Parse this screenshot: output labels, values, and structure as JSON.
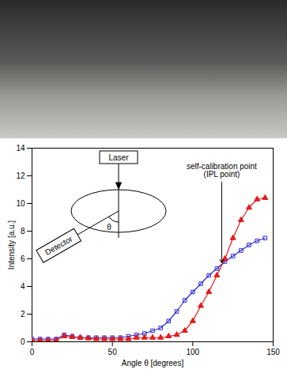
{
  "chart_data": {
    "type": "line",
    "xlabel": "Angle θ [degrees]",
    "ylabel": "Intensity [a.u.]",
    "x": [
      0,
      5,
      10,
      15,
      20,
      25,
      30,
      35,
      40,
      45,
      50,
      55,
      60,
      65,
      70,
      75,
      80,
      85,
      90,
      95,
      100,
      105,
      110,
      115,
      120,
      125,
      130,
      135,
      140,
      145
    ],
    "xlim": [
      0,
      150
    ],
    "xticks": [
      0,
      50,
      100,
      150
    ],
    "ylim": [
      0,
      14
    ],
    "yticks": [
      0,
      2,
      4,
      6,
      8,
      10,
      12,
      14
    ],
    "grid": false,
    "series": [
      {
        "color": "#2b2bd9",
        "marker": "square_open",
        "values": [
          0.2,
          0.2,
          0.2,
          0.2,
          0.5,
          0.4,
          0.3,
          0.3,
          0.3,
          0.3,
          0.3,
          0.3,
          0.4,
          0.5,
          0.6,
          0.8,
          1.0,
          1.5,
          2.2,
          3.0,
          3.6,
          4.2,
          4.8,
          5.3,
          5.8,
          6.2,
          6.6,
          7.0,
          7.3,
          7.5
        ]
      },
      {
        "color": "#e41a1c",
        "marker": "triangle",
        "values": [
          0.1,
          0.1,
          0.1,
          0.1,
          0.4,
          0.35,
          0.3,
          0.25,
          0.2,
          0.2,
          0.2,
          0.2,
          0.2,
          0.3,
          0.3,
          0.3,
          0.3,
          0.4,
          0.5,
          0.8,
          1.5,
          2.6,
          3.6,
          4.8,
          6.0,
          7.5,
          8.8,
          9.7,
          10.3,
          10.4
        ]
      }
    ],
    "annotations": [
      {
        "text": "self-calibration point\n(IPL point)",
        "x": 118,
        "y": 12.4,
        "point": [
          118,
          5.6
        ]
      }
    ],
    "inset": {
      "laser": "Laser",
      "detector": "Detector",
      "angle": "θ"
    }
  }
}
